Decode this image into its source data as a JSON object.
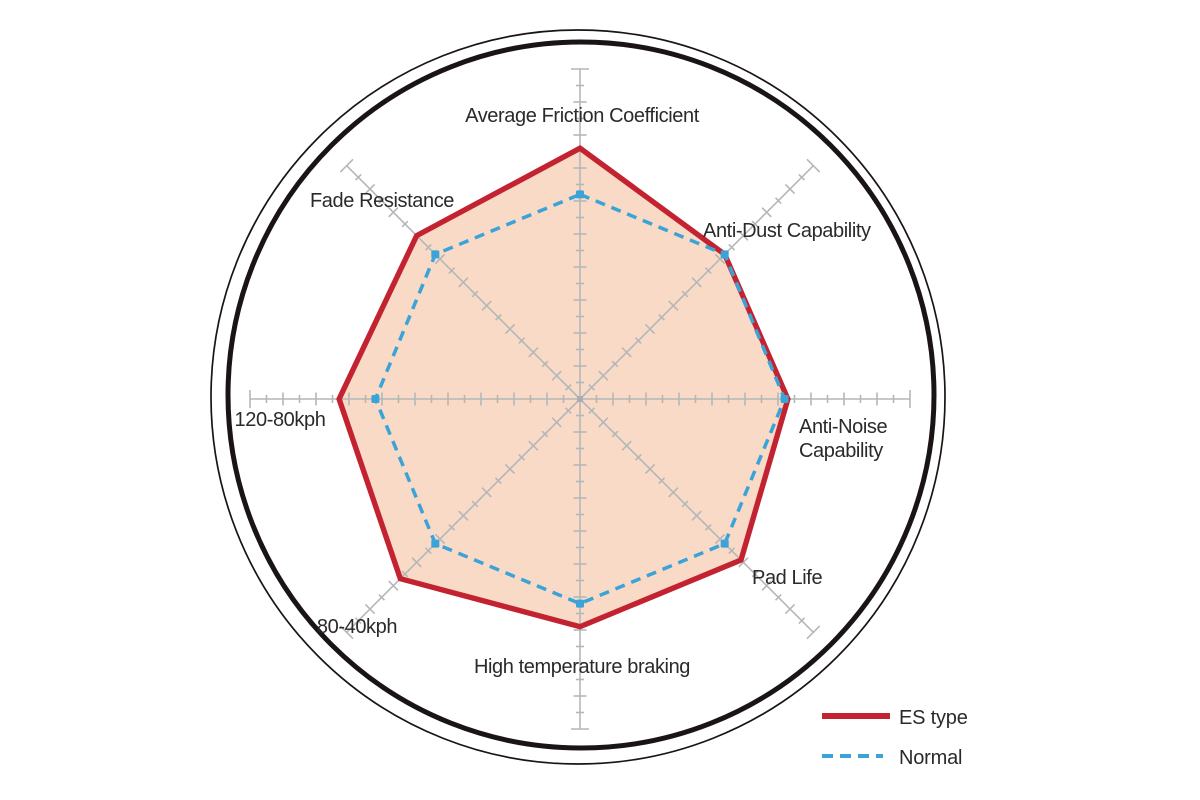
{
  "chart_data": {
    "type": "radar",
    "description": "Brake pad performance radar chart comparing ES type vs Normal pads",
    "axes": [
      {
        "label": "Average Friction Coefficient"
      },
      {
        "label": "Anti-Dust Capability"
      },
      {
        "label": "Anti-Noise Capability",
        "label_lines": [
          "Anti-Noise",
          "Capability"
        ]
      },
      {
        "label": "Pad Life"
      },
      {
        "label": "High temperature braking"
      },
      {
        "label": "80-40kph"
      },
      {
        "label": "120-80kph"
      },
      {
        "label": "Fade Resistance"
      }
    ],
    "scale": {
      "min": 0,
      "max": 10,
      "minor_step": 0.5,
      "major_step": 1
    },
    "grid": "spokes-with-ticks",
    "series": [
      {
        "name": "ES type",
        "line": "solid",
        "color": "#c32331",
        "area_fill": "#f8dac6",
        "values": [
          7.6,
          6.2,
          6.3,
          6.9,
          6.9,
          7.7,
          7.3,
          7.0
        ]
      },
      {
        "name": "Normal",
        "line": "dashed",
        "color": "#3aa3d8",
        "marker": "square",
        "values": [
          6.2,
          6.2,
          6.2,
          6.2,
          6.2,
          6.2,
          6.2,
          6.2
        ]
      }
    ],
    "legend": {
      "position": "bottom-right",
      "entries": [
        "ES type",
        "Normal"
      ]
    }
  },
  "colors": {
    "background": "#ffffff",
    "outer_ring": "#1b1414",
    "axis_gray": "#b4b7b9",
    "label_text": "#2a2a2a",
    "es_red": "#c32331",
    "normal_blue": "#3aa3d8",
    "area_peach": "#f8dac6"
  }
}
